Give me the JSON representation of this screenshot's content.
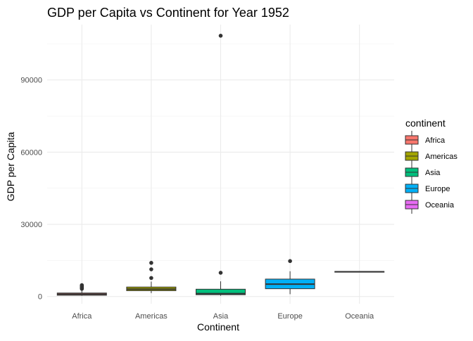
{
  "chart_data": {
    "type": "box",
    "title": "GDP per Capita vs Continent for Year 1952",
    "xlabel": "Continent",
    "ylabel": "GDP per Capita",
    "categories": [
      "Africa",
      "Americas",
      "Asia",
      "Europe",
      "Oceania"
    ],
    "y_ticks": [
      0,
      30000,
      60000,
      90000
    ],
    "y_tick_labels": [
      "0",
      "30000",
      "60000",
      "90000"
    ],
    "ylim": [
      -3000,
      113000
    ],
    "grid": true,
    "legend": {
      "title": "continent",
      "position": "right",
      "items": [
        "Africa",
        "Americas",
        "Asia",
        "Europe",
        "Oceania"
      ]
    },
    "series": [
      {
        "name": "Africa",
        "color": "#F8766D",
        "min": 299,
        "q1": 534,
        "median": 987,
        "q3": 1455,
        "max": 2670,
        "outliers": [
          3200,
          3500,
          3800,
          4050,
          4400,
          4725
        ]
      },
      {
        "name": "Americas",
        "color": "#A3A500",
        "min": 1400,
        "q1": 2430,
        "median": 3050,
        "q3": 3940,
        "max": 6200,
        "outliers": [
          7700,
          11300,
          13990
        ]
      },
      {
        "name": "Asia",
        "color": "#00BF7D",
        "min": 330,
        "q1": 750,
        "median": 1200,
        "q3": 3040,
        "max": 6300,
        "outliers": [
          9870,
          108380
        ]
      },
      {
        "name": "Europe",
        "color": "#00B0F6",
        "min": 970,
        "q1": 3240,
        "median": 5140,
        "q3": 7240,
        "max": 10500,
        "outliers": [
          14730
        ]
      },
      {
        "name": "Oceania",
        "color": "#E76BF3",
        "min": 10040,
        "q1": 10110,
        "median": 10300,
        "q3": 10420,
        "max": 10556,
        "outliers": []
      }
    ]
  }
}
